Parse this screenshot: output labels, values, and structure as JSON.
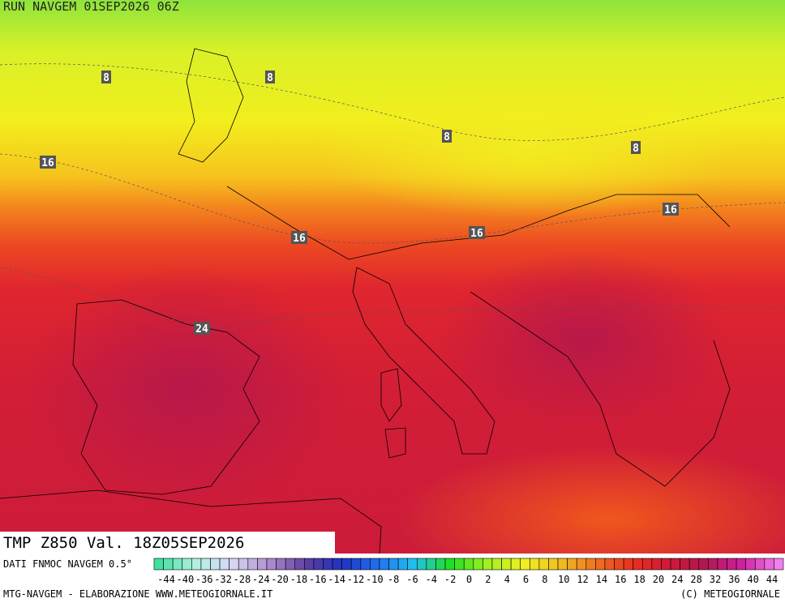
{
  "header": {
    "run": "RUN NAVGEM 01SEP2026 06Z"
  },
  "title": "TMP Z850 Val. 18Z05SEP2026",
  "map": {
    "contour_labels": [
      8,
      8,
      8,
      8,
      16,
      16,
      16,
      16,
      24
    ]
  },
  "legend": {
    "source": "DATI FNMOC NAVGEM 0.5°",
    "labels": [
      -44,
      -40,
      -36,
      -32,
      -28,
      -24,
      -20,
      -18,
      -16,
      -14,
      -12,
      -10,
      -8,
      -6,
      -4,
      -2,
      0,
      2,
      4,
      6,
      8,
      10,
      12,
      14,
      16,
      18,
      20,
      24,
      28,
      32,
      36,
      40,
      44
    ]
  },
  "footer": {
    "left": "MTG-NAVGEM - ELABORAZIONE WWW.METEOGIORNALE.IT",
    "right": "(C) METEOGIORNALE"
  }
}
